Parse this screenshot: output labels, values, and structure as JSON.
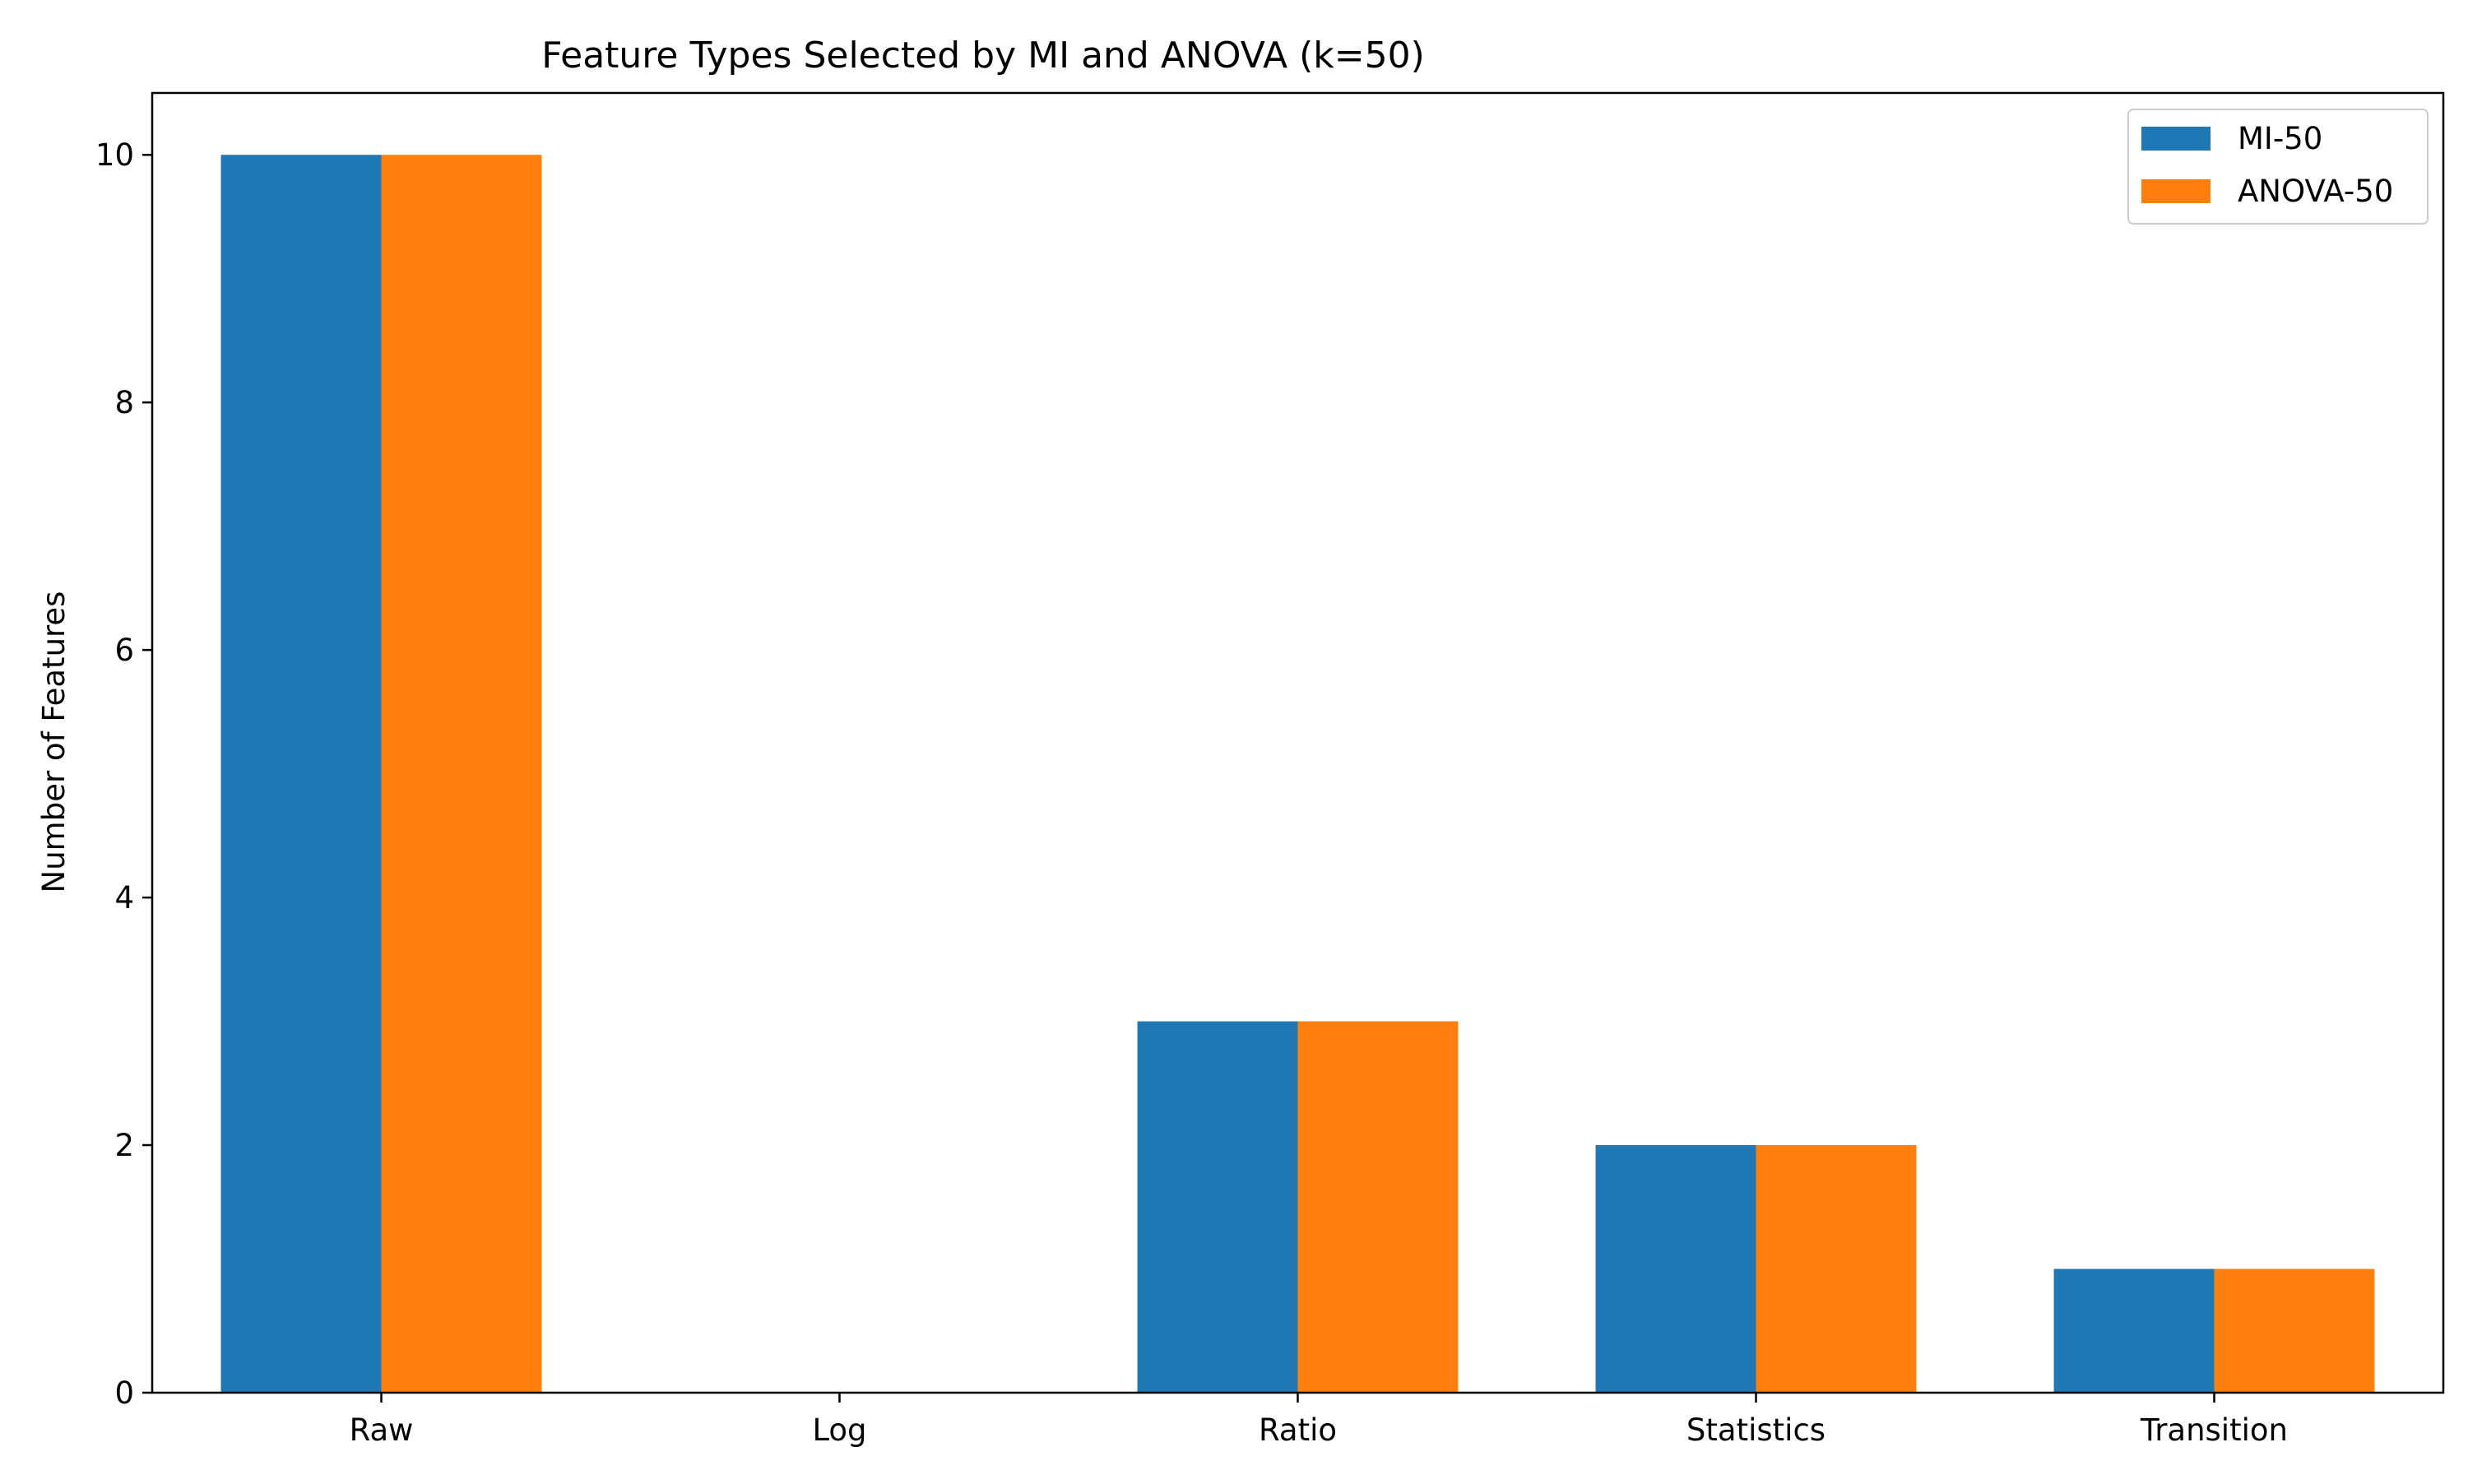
{
  "chart_data": {
    "type": "bar",
    "title": "Feature Types Selected by MI and ANOVA (k=50)",
    "xlabel": "",
    "ylabel": "Number of Features",
    "categories": [
      "Raw",
      "Log",
      "Ratio",
      "Statistics",
      "Transition"
    ],
    "series": [
      {
        "name": "MI-50",
        "values": [
          10,
          0,
          3,
          2,
          1
        ],
        "color": "#1f77b4"
      },
      {
        "name": "ANOVA-50",
        "values": [
          10,
          0,
          3,
          2,
          1
        ],
        "color": "#ff7f0e"
      }
    ],
    "ylim": [
      0,
      10.5
    ],
    "yticks": [
      0,
      2,
      4,
      6,
      8,
      10
    ],
    "grid": false,
    "legend_position": "top-right"
  }
}
